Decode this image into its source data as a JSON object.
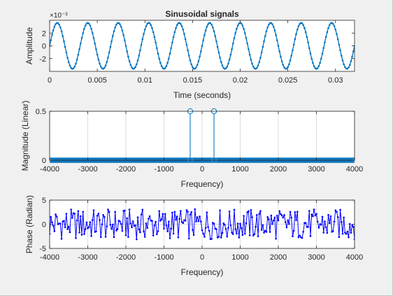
{
  "figure": {
    "background": "#f0f0f0",
    "axes_background": "#ffffff",
    "grid_color": "#dcdcdc",
    "text_color": "#262626"
  },
  "chart_data": [
    {
      "type": "line",
      "title": "Sinusoidal signals",
      "xlabel": "Time (seconds)",
      "ylabel": "Amplitude",
      "exponent_label": "×10⁻³",
      "xlim": [
        0,
        0.032
      ],
      "ylim": [
        -4,
        4
      ],
      "xticks": [
        0,
        0.005,
        0.01,
        0.015,
        0.02,
        0.025,
        0.03
      ],
      "xtick_labels": [
        "0",
        "0.005",
        "0.01",
        "0.015",
        "0.02",
        "0.025",
        "0.03"
      ],
      "yticks": [
        -2,
        0,
        2
      ],
      "ytick_labels": [
        "-2",
        "0",
        "2"
      ],
      "grid": false,
      "marker": "point",
      "color": "#0072bd",
      "signal": {
        "amplitude": 0.0036,
        "frequency_hz": 312.5,
        "sample_rate_hz": 8000,
        "start_time": 0,
        "end_time": 0.032
      }
    },
    {
      "type": "stem",
      "xlabel": "Frequency)",
      "ylabel": "Magnitude (Linear)",
      "xlim": [
        -4000,
        4000
      ],
      "ylim": [
        0,
        0.5
      ],
      "xticks": [
        -4000,
        -3000,
        -2000,
        -1000,
        0,
        1000,
        2000,
        3000,
        4000
      ],
      "xtick_labels": [
        "-4000",
        "-3000",
        "-2000",
        "-1000",
        "0",
        "1000",
        "2000",
        "3000",
        "4000"
      ],
      "yticks": [
        0,
        0.5
      ],
      "ytick_labels": [
        "0",
        "0.5"
      ],
      "grid": true,
      "marker": "circle",
      "color": "#0072bd",
      "bins": {
        "start": -4000,
        "end": 4000,
        "count": 257
      },
      "peaks": [
        {
          "frequency": -312.5,
          "magnitude": 0.5
        },
        {
          "frequency": 312.5,
          "magnitude": 0.5
        }
      ]
    },
    {
      "type": "line",
      "xlabel": "Frequency)",
      "ylabel": "Phase (Radian)",
      "xlim": [
        -4000,
        4000
      ],
      "ylim": [
        -5,
        5
      ],
      "xticks": [
        -4000,
        -3000,
        -2000,
        -1000,
        0,
        1000,
        2000,
        3000,
        4000
      ],
      "xtick_labels": [
        "-4000",
        "-3000",
        "-2000",
        "-1000",
        "0",
        "1000",
        "2000",
        "3000",
        "4000"
      ],
      "yticks": [
        -5,
        0,
        5
      ],
      "ytick_labels": [
        "-5",
        "0",
        "5"
      ],
      "grid": true,
      "marker": "point",
      "color": "#0000ff",
      "bins": {
        "start": -4000,
        "end": 4000,
        "count": 257
      },
      "phase_range": [
        -3.14,
        3.14
      ]
    }
  ]
}
